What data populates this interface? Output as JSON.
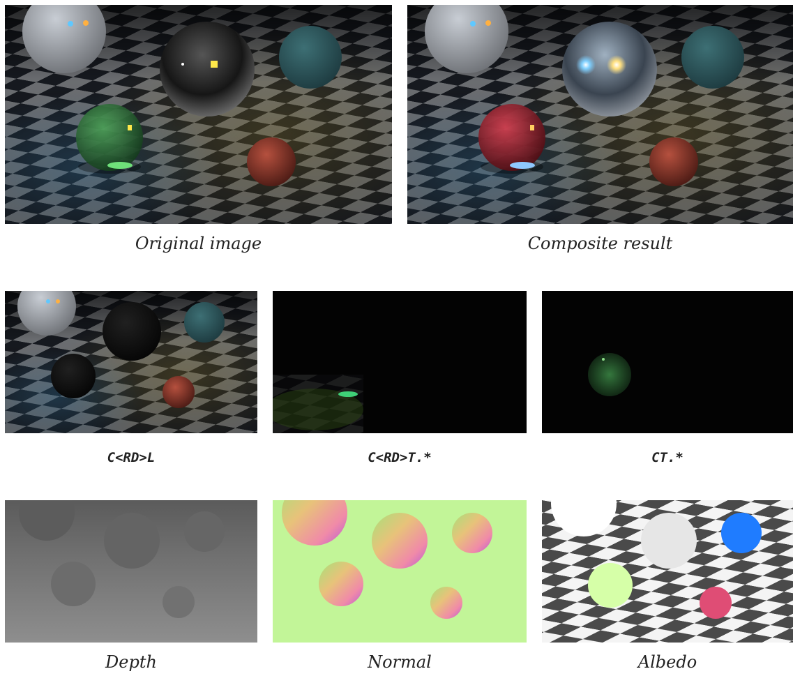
{
  "figure": {
    "top_row": [
      {
        "caption": "Original image"
      },
      {
        "caption": "Composite result"
      }
    ],
    "middle_row": [
      {
        "caption": "C<RD>L"
      },
      {
        "caption": "C<RD>T.*"
      },
      {
        "caption": "CT.*"
      }
    ],
    "bottom_row": [
      {
        "caption": "Depth"
      },
      {
        "caption": "Normal"
      },
      {
        "caption": "Albedo"
      }
    ]
  }
}
